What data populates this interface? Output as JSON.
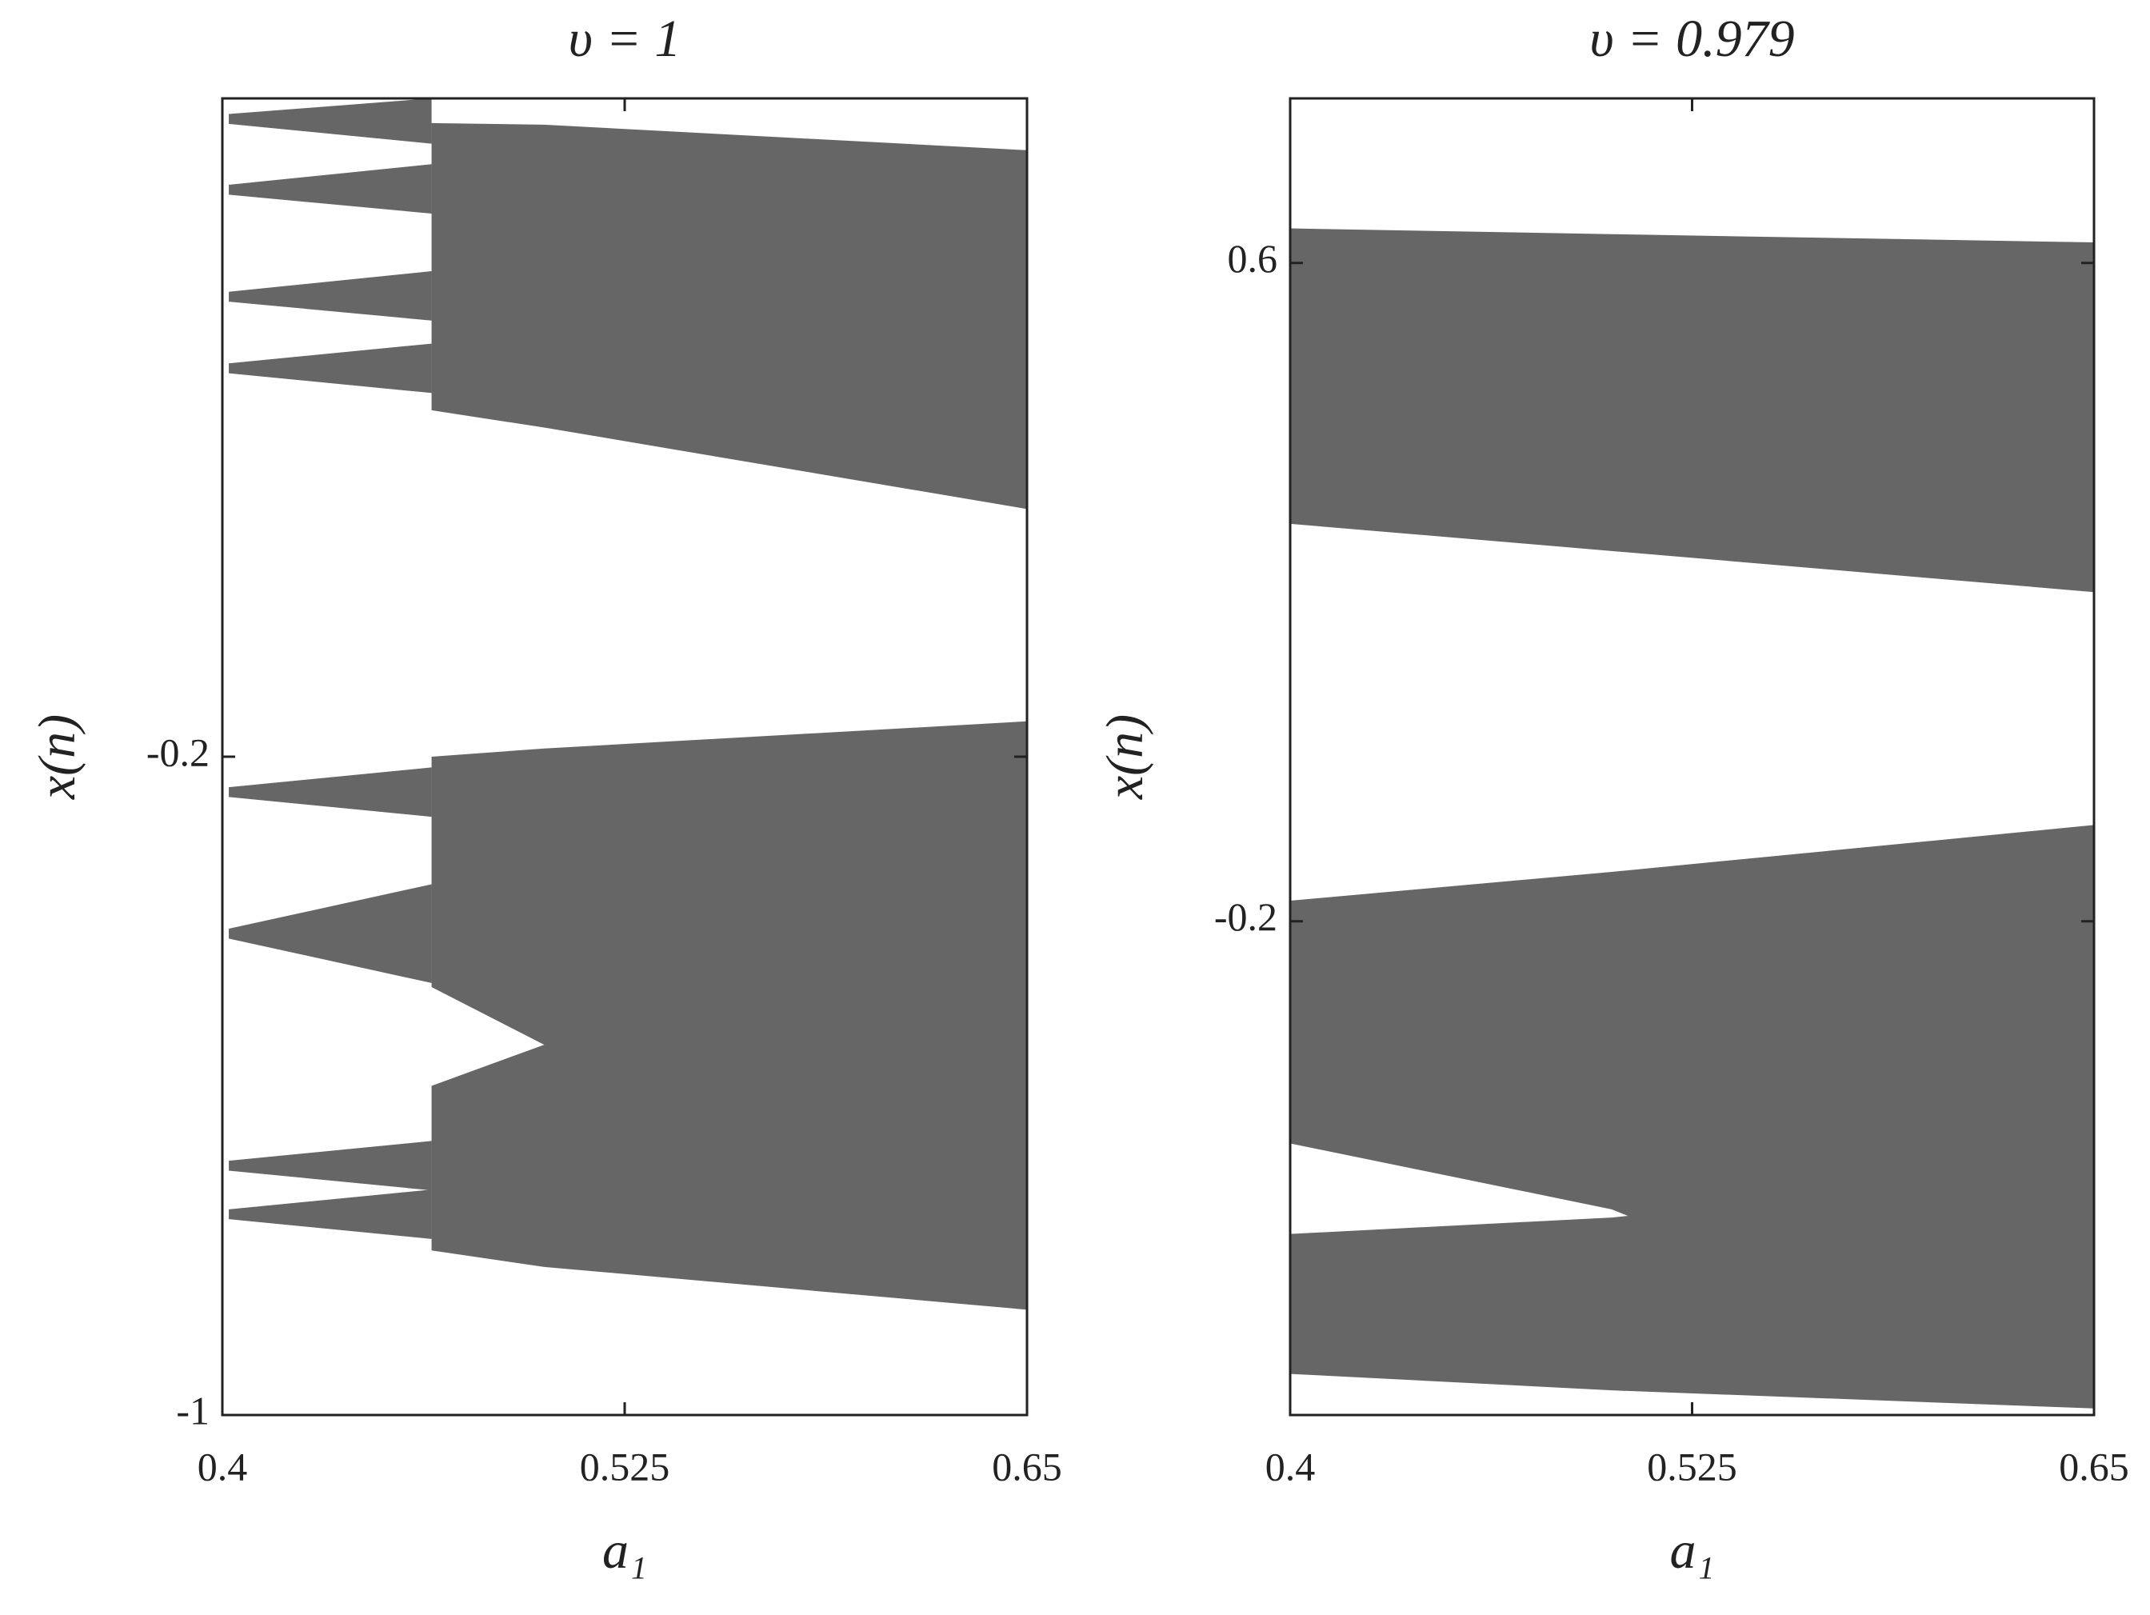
{
  "chart_data": [
    {
      "type": "band",
      "title": "υ = 1",
      "x_label": "a₁",
      "y_label": "x(n)",
      "color": "#666666",
      "xlim": [
        0.4,
        0.65
      ],
      "xticks": [
        0.4,
        0.525,
        0.65
      ],
      "ylim": [
        -1,
        0.6
      ],
      "yticks": [
        -1,
        -0.2
      ],
      "series": [
        {
          "x": [
            0.465,
            0.5,
            0.65
          ],
          "low": [
            0.221,
            0.2,
            0.101
          ],
          "high": [
            0.57,
            0.568,
            0.537
          ]
        },
        {
          "x": [
            0.465,
            0.5,
            0.65
          ],
          "low": [
            -0.48,
            -0.55,
            -0.87
          ],
          "high": [
            -0.2,
            -0.19,
            -0.157
          ]
        },
        {
          "x": [
            0.465,
            0.5,
            0.65
          ],
          "low": [
            -0.8,
            -0.82,
            -0.872
          ],
          "high": [
            -0.6,
            -0.55,
            -0.5
          ]
        },
        {
          "x": [
            0.402,
            0.465
          ],
          "low": [
            0.569,
            0.545
          ],
          "high": [
            0.581,
            0.6
          ]
        },
        {
          "x": [
            0.402,
            0.465
          ],
          "low": [
            0.483,
            0.46
          ],
          "high": [
            0.495,
            0.52
          ]
        },
        {
          "x": [
            0.402,
            0.465
          ],
          "low": [
            0.353,
            0.33
          ],
          "high": [
            0.365,
            0.39
          ]
        },
        {
          "x": [
            0.402,
            0.465
          ],
          "low": [
            0.266,
            0.242
          ],
          "high": [
            0.278,
            0.302
          ]
        },
        {
          "x": [
            0.402,
            0.465
          ],
          "low": [
            -0.249,
            -0.273
          ],
          "high": [
            -0.237,
            -0.213
          ]
        },
        {
          "x": [
            0.402,
            0.465
          ],
          "low": [
            -0.421,
            -0.475
          ],
          "high": [
            -0.409,
            -0.355
          ]
        },
        {
          "x": [
            0.402,
            0.465
          ],
          "low": [
            -0.703,
            -0.727
          ],
          "high": [
            -0.691,
            -0.667
          ]
        },
        {
          "x": [
            0.402,
            0.465
          ],
          "low": [
            -0.762,
            -0.786
          ],
          "high": [
            -0.75,
            -0.726
          ]
        }
      ]
    },
    {
      "type": "band",
      "title": "υ = 0.979",
      "x_label": "a₁",
      "y_label": "x(n)",
      "color": "#666666",
      "xlim": [
        0.4,
        0.65
      ],
      "xticks": [
        0.4,
        0.525,
        0.65
      ],
      "ylim": [
        -0.8,
        0.8
      ],
      "yticks": [
        -0.2,
        0.6
      ],
      "series": [
        {
          "x": [
            0.4,
            0.5,
            0.65
          ],
          "low": [
            0.283,
            0.25,
            0.2
          ],
          "high": [
            0.642,
            0.635,
            0.625
          ]
        },
        {
          "x": [
            0.4,
            0.5,
            0.65
          ],
          "low": [
            -0.47,
            -0.55,
            -0.79
          ],
          "high": [
            -0.175,
            -0.14,
            -0.083
          ]
        },
        {
          "x": [
            0.4,
            0.5,
            0.65
          ],
          "low": [
            -0.75,
            -0.77,
            -0.792
          ],
          "high": [
            -0.58,
            -0.56,
            -0.5
          ]
        }
      ]
    }
  ]
}
